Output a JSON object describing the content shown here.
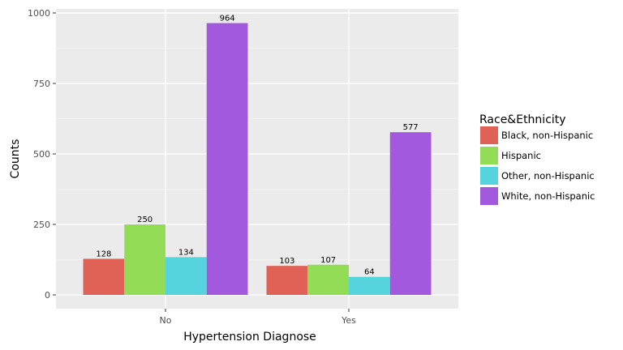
{
  "chart_data": {
    "type": "bar",
    "categories": [
      "No",
      "Yes"
    ],
    "series": [
      {
        "name": "Black, non-Hispanic",
        "values": [
          128,
          103
        ],
        "color": "#e06257"
      },
      {
        "name": "Hispanic",
        "values": [
          250,
          107
        ],
        "color": "#93dc55"
      },
      {
        "name": "Other, non-Hispanic",
        "values": [
          134,
          64
        ],
        "color": "#56d4de"
      },
      {
        "name": "White, non-Hispanic",
        "values": [
          964,
          577
        ],
        "color": "#a259de"
      }
    ],
    "xlabel": "Hypertension Diagnose",
    "ylabel": "Counts",
    "ylim": [
      0,
      1000
    ],
    "yticks": [
      0,
      250,
      500,
      750,
      1000
    ],
    "grid": true,
    "legend": {
      "title": "Race&Ethnicity",
      "position": "right"
    },
    "panel_color": "#ebebeb"
  }
}
